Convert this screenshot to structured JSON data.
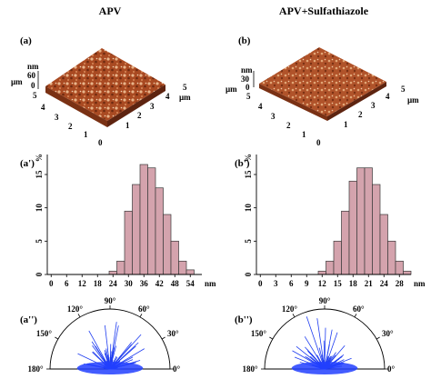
{
  "figure": {
    "columns": [
      {
        "title": "APV",
        "surface": {
          "label": "(a)",
          "z_label": "nm",
          "z_ticks": [
            "60",
            "0"
          ],
          "unit": "µm",
          "left_ticks": [
            "5",
            "4",
            "3",
            "2",
            "1",
            "0"
          ],
          "right_ticks": [
            "1",
            "2",
            "3",
            "4",
            "5"
          ],
          "color": "#b5552b"
        },
        "histogram_label": "(a')",
        "polar_label": "(a'')"
      },
      {
        "title": "APV+Sulfathiazole",
        "surface": {
          "label": "(b)",
          "z_label": "nm",
          "z_ticks": [
            "30",
            "0"
          ],
          "unit": "µm",
          "left_ticks": [
            "5",
            "4",
            "3",
            "2",
            "1",
            "0"
          ],
          "right_ticks": [
            "1",
            "2",
            "3",
            "4",
            "5"
          ],
          "color": "#b8582e"
        },
        "histogram_label": "(b')",
        "polar_label": "(b'')"
      }
    ],
    "polar_angle_labels": [
      "180°",
      "150°",
      "120°",
      "90°",
      "60°",
      "30°",
      "0°"
    ]
  },
  "chart_data": [
    {
      "type": "bar",
      "categories": [
        "0",
        "3",
        "6",
        "9",
        "12",
        "15",
        "18",
        "21",
        "24",
        "27",
        "30",
        "33",
        "36",
        "39",
        "42",
        "45",
        "48",
        "51",
        "54",
        "57"
      ],
      "values": [
        0,
        0,
        0,
        0,
        0,
        0,
        0,
        0,
        0.5,
        2,
        9.5,
        13.5,
        16.5,
        16,
        13,
        9,
        5,
        2,
        0.7,
        0
      ],
      "x_tick_labels": [
        "0",
        "6",
        "12",
        "18",
        "24",
        "30",
        "36",
        "42",
        "48",
        "54"
      ],
      "x_unit": "nm",
      "y_ticks": [
        "0",
        "5",
        "10",
        "15"
      ],
      "y_unit": "%",
      "ylim": [
        0,
        18
      ],
      "bar_color": "#d4a3ad"
    },
    {
      "type": "bar",
      "categories": [
        "0",
        "1.5",
        "3",
        "4.5",
        "6",
        "7.5",
        "9",
        "10.5",
        "12",
        "13.5",
        "15",
        "16.5",
        "18",
        "19.5",
        "21",
        "22.5",
        "24",
        "25.5",
        "27",
        "28.5"
      ],
      "values": [
        0,
        0,
        0,
        0,
        0,
        0,
        0,
        0,
        0.5,
        2,
        5,
        9.5,
        14,
        16,
        16,
        13.5,
        9,
        5,
        2,
        0.5
      ],
      "x_tick_labels": [
        "0",
        "3",
        "6",
        "9",
        "12",
        "15",
        "18",
        "21",
        "24",
        "28"
      ],
      "x_unit": "nm",
      "y_ticks": [
        "0",
        "5",
        "10",
        "15"
      ],
      "y_unit": "%",
      "ylim": [
        0,
        18
      ],
      "bar_color": "#d4a3ad"
    }
  ]
}
